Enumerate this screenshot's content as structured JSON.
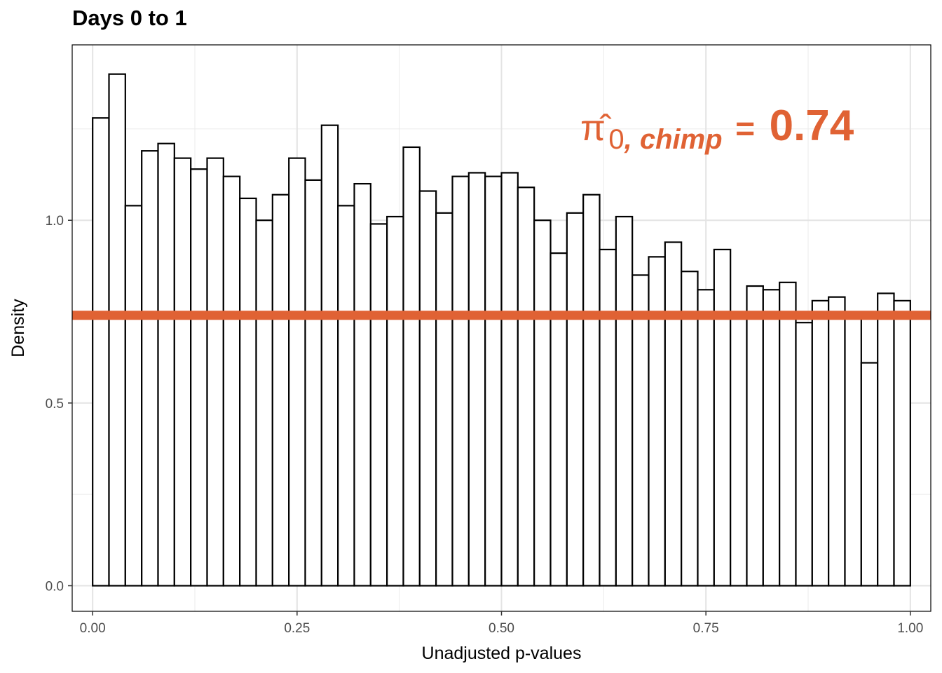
{
  "chart_data": {
    "type": "bar",
    "title": "Days 0 to 1",
    "xlabel": "Unadjusted p-values",
    "ylabel": "Density",
    "xlim": [
      -0.025,
      1.025
    ],
    "ylim": [
      -0.07,
      1.48
    ],
    "x_ticks": [
      "0.00",
      "0.25",
      "0.50",
      "0.75",
      "1.00"
    ],
    "x_tick_values": [
      0.0,
      0.25,
      0.5,
      0.75,
      1.0
    ],
    "y_ticks": [
      "0.0",
      "0.5",
      "1.0"
    ],
    "y_tick_values": [
      0.0,
      0.5,
      1.0
    ],
    "bin_width": 0.02,
    "bin_starts": [
      0.0,
      0.02,
      0.04,
      0.06,
      0.08,
      0.1,
      0.12,
      0.14,
      0.16,
      0.18,
      0.2,
      0.22,
      0.24,
      0.26,
      0.28,
      0.3,
      0.32,
      0.34,
      0.36,
      0.38,
      0.4,
      0.42,
      0.44,
      0.46,
      0.48,
      0.5,
      0.52,
      0.54,
      0.56,
      0.58,
      0.6,
      0.62,
      0.64,
      0.66,
      0.68,
      0.7,
      0.72,
      0.74,
      0.76,
      0.78,
      0.8,
      0.82,
      0.84,
      0.86,
      0.88,
      0.9,
      0.92,
      0.94,
      0.96,
      0.98
    ],
    "values": [
      1.28,
      1.4,
      1.04,
      1.19,
      1.21,
      1.17,
      1.14,
      1.17,
      1.12,
      1.06,
      1.0,
      1.07,
      1.17,
      1.11,
      1.26,
      1.04,
      1.1,
      0.99,
      1.01,
      1.2,
      1.08,
      1.02,
      1.12,
      1.13,
      1.12,
      1.13,
      1.09,
      1.0,
      0.91,
      1.02,
      1.07,
      0.92,
      1.01,
      0.85,
      0.9,
      0.94,
      0.86,
      0.81,
      0.92,
      0.73,
      0.82,
      0.81,
      0.83,
      0.72,
      0.78,
      0.79,
      0.74,
      0.61,
      0.8,
      0.78
    ],
    "hline": {
      "y": 0.74,
      "color": "#e06234"
    },
    "annotation": {
      "symbol": "π̂",
      "subscript": "0, chimp",
      "equals": "=",
      "value": "0.74",
      "color": "#e06234"
    },
    "grid": true,
    "legend": "none"
  }
}
